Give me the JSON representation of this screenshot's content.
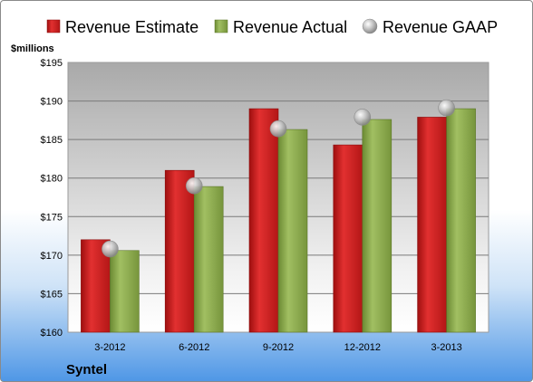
{
  "chart_data": {
    "type": "bar",
    "unit_label": "$millions",
    "company": "Syntel",
    "categories": [
      "3-2012",
      "6-2012",
      "9-2012",
      "12-2012",
      "3-2013"
    ],
    "ylim": [
      160,
      195
    ],
    "yticks": [
      {
        "value": 160,
        "label": "$160"
      },
      {
        "value": 165,
        "label": "$165"
      },
      {
        "value": 170,
        "label": "$170"
      },
      {
        "value": 175,
        "label": "$175"
      },
      {
        "value": 180,
        "label": "$180"
      },
      {
        "value": 185,
        "label": "$185"
      },
      {
        "value": 190,
        "label": "$190"
      },
      {
        "value": 195,
        "label": "$195"
      }
    ],
    "grid": true,
    "legend_position": "top",
    "series": [
      {
        "name": "Revenue Estimate",
        "kind": "bar",
        "color": "#d42020",
        "values": [
          172.0,
          181.0,
          189.0,
          184.3,
          187.9
        ]
      },
      {
        "name": "Revenue Actual",
        "kind": "bar",
        "color": "#8caa4e",
        "values": [
          170.6,
          178.9,
          186.3,
          187.6,
          189.0
        ]
      },
      {
        "name": "Revenue GAAP",
        "kind": "marker",
        "color": "#b8b8b8",
        "values": [
          170.8,
          179.0,
          186.4,
          187.9,
          189.1
        ]
      }
    ]
  }
}
